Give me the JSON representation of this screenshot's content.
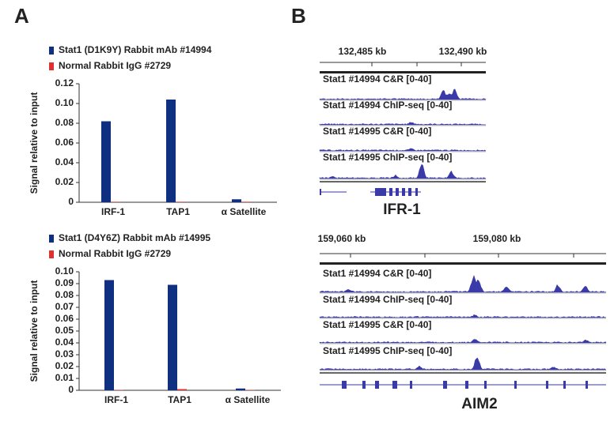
{
  "panel_labels": [
    "A",
    "B"
  ],
  "chart_data": [
    {
      "type": "bar",
      "categories": [
        "IRF-1",
        "TAP1",
        "α Satellite"
      ],
      "y_label": "Signal relative to input",
      "series": [
        {
          "name": "Stat1 (D1K9Y) Rabbit mAb #14994",
          "color": "#0f2f80",
          "values": [
            0.082,
            0.104,
            0.003
          ]
        },
        {
          "name": "Normal Rabbit IgG #2729",
          "color": "#e03030",
          "values": [
            0.0005,
            0.0005,
            0.0005
          ]
        }
      ],
      "ylim": [
        0,
        0.12
      ],
      "yticks": [
        0,
        0.02,
        0.04,
        0.06,
        0.08,
        {
          "value": 0.1,
          "label": "0.10"
        },
        0.12
      ]
    },
    {
      "type": "bar",
      "categories": [
        "IRF-1",
        "TAP1",
        "α Satellite"
      ],
      "y_label": "Signal relative to input",
      "series": [
        {
          "name": "Stat1 (D4Y6Z) Rabbit mAb #14995",
          "color": "#0f2f80",
          "values": [
            0.093,
            0.089,
            0.0015
          ]
        },
        {
          "name": "Normal Rabbit IgG #2729",
          "color": "#e03030",
          "values": [
            0.0003,
            0.001,
            0.0003
          ]
        }
      ],
      "ylim": [
        0,
        0.1
      ],
      "yticks": [
        0,
        0.01,
        0.02,
        0.03,
        0.04,
        0.05,
        0.06,
        0.07,
        0.08,
        0.09,
        {
          "value": 0.1,
          "label": "0.10"
        }
      ]
    }
  ],
  "browsers": [
    {
      "coordinates": [
        "132,485 kb",
        "132,490 kb"
      ],
      "gene": "IFR-1",
      "tracks": [
        "Stat1 #14994 C&R  [0-40]",
        "Stat1 #14994 ChIP-seq  [0-40]",
        "Stat1 #14995 C&R  [0-40]",
        "Stat1 #14995 ChIP-seq  [0-40]"
      ]
    },
    {
      "coordinates": [
        "159,060 kb",
        "159,080 kb"
      ],
      "gene": "AIM2",
      "tracks": [
        "Stat1 #14994 C&R  [0-40]",
        "Stat1 #14994 ChIP-seq  [0-40]",
        "Stat1 #14995 C&R  [0-40]",
        "Stat1 #14995 ChIP-seq  [0-40]"
      ]
    }
  ]
}
